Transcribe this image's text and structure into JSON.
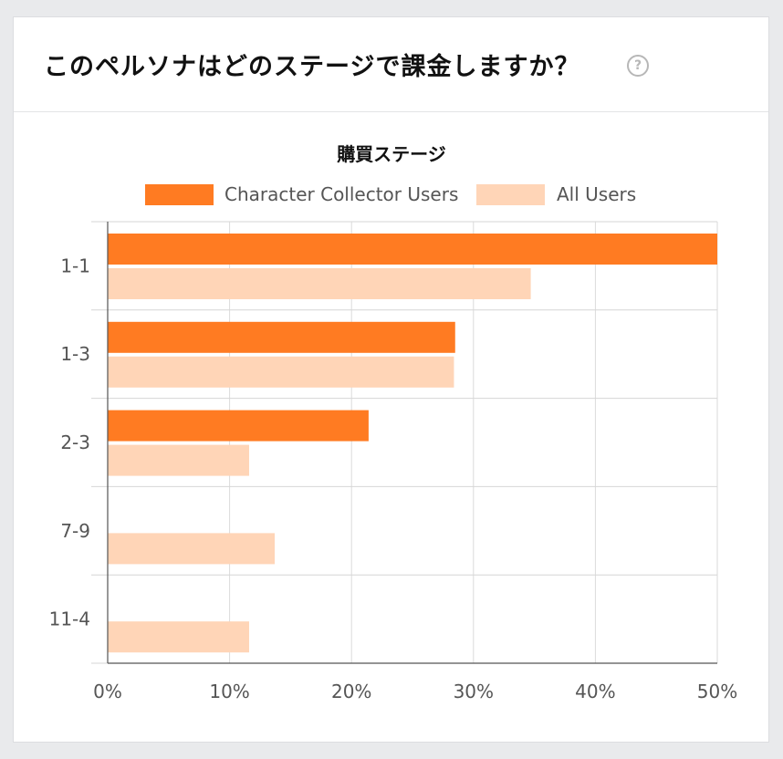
{
  "card": {
    "title": "このペルソナはどのステージで課金しますか？",
    "help_icon": "question-circle-icon",
    "help_glyph": "?"
  },
  "chart_data": {
    "type": "bar",
    "orientation": "horizontal",
    "title": "購買ステージ",
    "categories": [
      "1-1",
      "1-3",
      "2-3",
      "7-9",
      "11-4"
    ],
    "series": [
      {
        "name": "Character Collector Users",
        "color": "#ff7b22",
        "values": [
          50.0,
          28.5,
          21.4,
          0,
          0
        ]
      },
      {
        "name": "All Users",
        "color": "#ffd5b7",
        "values": [
          34.7,
          28.4,
          11.6,
          13.7,
          11.6
        ]
      }
    ],
    "xlim": [
      0,
      50
    ],
    "xticks": [
      "0%",
      "10%",
      "20%",
      "30%",
      "40%",
      "50%"
    ],
    "grid": true,
    "legend_position": "top"
  }
}
